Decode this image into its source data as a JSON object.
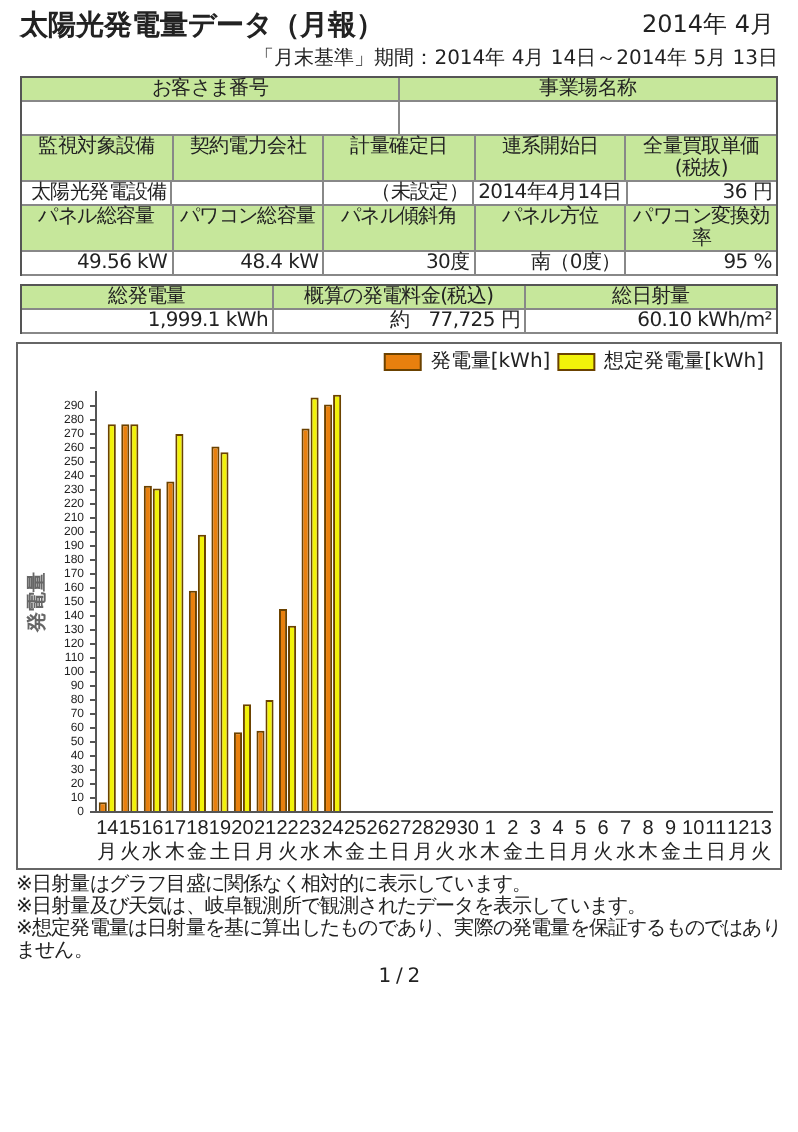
{
  "chart_data": [
    {
      "type": "other",
      "title": "太陽光発電量データ（月報）",
      "subtitle": "2014年 4月",
      "annotations": [
        "「月末基準」期間：2014年 4月 14日～2014年 5月 13日",
        "お客さま番号",
        "事業場名称",
        "監視対象設備",
        "契約電力会社",
        "計量確定日",
        "連系開始日",
        "全量買取単価(税抜)",
        "太陽光発電設備",
        "（未設定）",
        "2014年4月14日",
        "36 円",
        "パネル総容量",
        "パワコン総容量",
        "パネル傾斜角",
        "パネル方位",
        "パワコン変換効率",
        "49.56 kW",
        "48.4 kW",
        "30度",
        "南（0度）",
        "95 %",
        "総発電量",
        "概算の発電料金(税込)",
        "総日射量",
        "1,999.1 kWh",
        "約　77,725 円",
        "60.10 kWh/m²"
      ]
    },
    {
      "type": "bar",
      "ylabel": "発電量",
      "categories": [
        "14\n月",
        "15\n火",
        "16\n水",
        "17\n木",
        "18\n金",
        "19\n土",
        "20\n日",
        "21\n月",
        "22\n火",
        "23\n水",
        "24\n木",
        "25\n金",
        "26\n土",
        "27\n日",
        "28\n月",
        "29\n火",
        "30\n水",
        "1\n木",
        "2\n金",
        "3\n土",
        "4\n日",
        "5\n月",
        "6\n火",
        "7\n水",
        "8\n木",
        "9\n金",
        "10\n土",
        "11\n日",
        "12\n月",
        "13\n火"
      ],
      "series": [
        {
          "name": "発電量[kWh]",
          "color": "#e8800e",
          "values": [
            7,
            277,
            233,
            236,
            158,
            261,
            57,
            58,
            145,
            274,
            291,
            null,
            null,
            null,
            null,
            null,
            null,
            null,
            null,
            null,
            null,
            null,
            null,
            null,
            null,
            null,
            null,
            null,
            null,
            null
          ]
        },
        {
          "name": "想定発電量[kWh]",
          "color": "#f2f20a",
          "values": [
            277,
            277,
            231,
            270,
            198,
            257,
            77,
            80,
            133,
            296,
            298,
            null,
            null,
            null,
            null,
            null,
            null,
            null,
            null,
            null,
            null,
            null,
            null,
            null,
            null,
            null,
            null,
            null,
            null,
            null
          ]
        }
      ],
      "ylim": [
        0,
        300
      ],
      "yticks": [
        0,
        10,
        20,
        30,
        40,
        50,
        60,
        70,
        80,
        90,
        100,
        110,
        120,
        130,
        140,
        150,
        160,
        170,
        180,
        190,
        200,
        210,
        220,
        230,
        240,
        250,
        260,
        270,
        280,
        290
      ],
      "grid": false,
      "legend": "top right",
      "annotations": [
        "※日射量はグラフ目盛に関係なく相対的に表示しています。",
        "※日射量及び天気は、岐阜観測所で観測されたデータを表示しています。",
        "※想定発電量は日射量を基に算出したものであり、実際の発電量を保証するものではありません。",
        "1 / 2"
      ]
    }
  ]
}
